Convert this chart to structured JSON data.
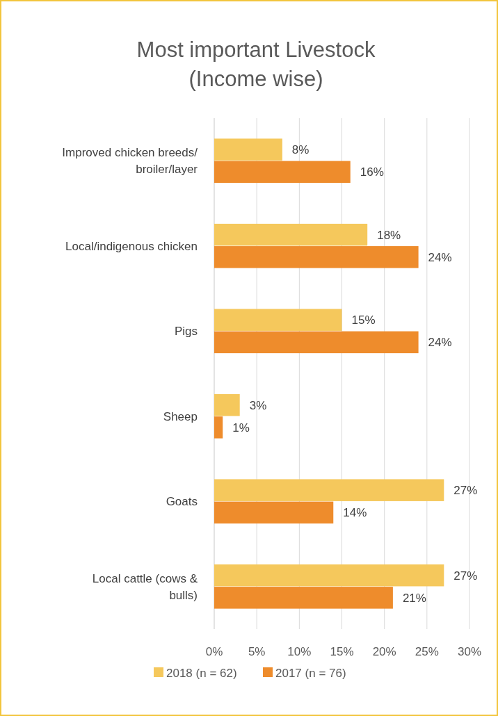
{
  "chart_data": {
    "type": "bar",
    "orientation": "horizontal",
    "title": "Most important Livestock (Income wise)",
    "categories": [
      "Improved chicken breeds/ broiler/layer",
      "Local/indigenous chicken",
      "Pigs",
      "Sheep",
      "Goats",
      "Local cattle  (cows & bulls)"
    ],
    "series": [
      {
        "name": "2018 (n = 62)",
        "color": "#f5c85c",
        "values": [
          8,
          18,
          15,
          3,
          27,
          27
        ],
        "value_labels": [
          "8%",
          "18%",
          "15%",
          "3%",
          "27%",
          "27%"
        ]
      },
      {
        "name": "2017 (n = 76)",
        "color": "#ee8c2c",
        "values": [
          16,
          24,
          24,
          1,
          14,
          21
        ],
        "value_labels": [
          "16%",
          "24%",
          "24%",
          "1%",
          "14%",
          "21%"
        ]
      }
    ],
    "xlim": [
      0,
      30
    ],
    "xticks": [
      {
        "value": 0,
        "label": "0%"
      },
      {
        "value": 5,
        "label": "5%"
      },
      {
        "value": 10,
        "label": "10%"
      },
      {
        "value": 15,
        "label": "15%"
      },
      {
        "value": 20,
        "label": "20%"
      },
      {
        "value": 25,
        "label": "25%"
      },
      {
        "value": 30,
        "label": "30%"
      }
    ],
    "grid": "x",
    "legend": "bottom"
  }
}
